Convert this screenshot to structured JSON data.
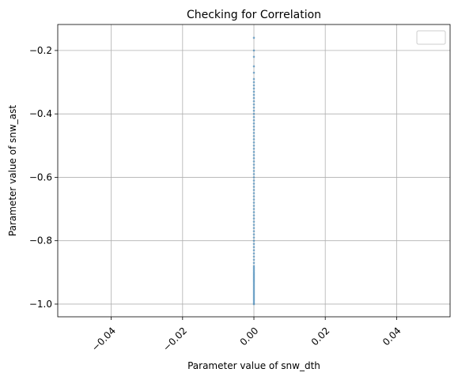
{
  "chart_data": {
    "type": "scatter",
    "title": "Checking for Correlation",
    "xlabel": "Parameter value of snw_dth",
    "ylabel": "Parameter value of snw_ast",
    "xlim": [
      -0.055,
      0.055
    ],
    "ylim": [
      -1.04,
      -0.118
    ],
    "xticks": [
      -0.04,
      -0.02,
      0.0,
      0.02,
      0.04
    ],
    "xtick_labels": [
      "−0.04",
      "−0.02",
      "0.00",
      "0.02",
      "0.04"
    ],
    "xtick_rotation": 45,
    "yticks": [
      -1.0,
      -0.8,
      -0.6,
      -0.4,
      -0.2
    ],
    "ytick_labels": [
      "−1.0",
      "−0.8",
      "−0.6",
      "−0.4",
      "−0.2"
    ],
    "grid": true,
    "legend": "empty box, top-right",
    "colors": {
      "point": "#1f77b4",
      "grid": "#b0b0b0"
    },
    "series": [
      {
        "x": [
          0,
          0,
          0,
          0,
          0,
          0,
          0,
          0,
          0,
          0,
          0,
          0,
          0,
          0,
          0,
          0,
          0,
          0,
          0,
          0,
          0,
          0,
          0,
          0,
          0,
          0,
          0,
          0,
          0,
          0,
          0,
          0,
          0,
          0,
          0,
          0,
          0,
          0,
          0,
          0,
          0,
          0,
          0,
          0,
          0,
          0,
          0,
          0,
          0,
          0,
          0,
          0,
          0,
          0,
          0,
          0,
          0,
          0,
          0,
          0,
          0,
          0,
          0,
          0,
          0,
          0,
          0,
          0,
          0,
          0,
          0,
          0,
          0,
          0,
          0,
          0,
          0,
          0,
          0,
          0,
          0,
          0,
          0,
          0,
          0,
          0,
          0,
          0,
          0
        ],
        "y": [
          -0.16,
          -0.2,
          -0.22,
          -0.25,
          -0.27,
          -0.29,
          -0.3,
          -0.31,
          -0.32,
          -0.33,
          -0.34,
          -0.35,
          -0.36,
          -0.37,
          -0.38,
          -0.39,
          -0.4,
          -0.41,
          -0.42,
          -0.43,
          -0.44,
          -0.45,
          -0.46,
          -0.47,
          -0.48,
          -0.49,
          -0.5,
          -0.51,
          -0.52,
          -0.53,
          -0.54,
          -0.55,
          -0.56,
          -0.57,
          -0.58,
          -0.59,
          -0.6,
          -0.61,
          -0.62,
          -0.63,
          -0.64,
          -0.65,
          -0.66,
          -0.67,
          -0.68,
          -0.69,
          -0.7,
          -0.71,
          -0.72,
          -0.73,
          -0.74,
          -0.75,
          -0.76,
          -0.77,
          -0.78,
          -0.79,
          -0.8,
          -0.81,
          -0.82,
          -0.83,
          -0.84,
          -0.85,
          -0.86,
          -0.87,
          -0.88,
          -0.89,
          -0.9,
          -0.91,
          -0.92,
          -0.93,
          -0.94,
          -0.95,
          -0.96,
          -0.965,
          -0.97,
          -0.975,
          -0.98,
          -0.985,
          -0.99,
          -0.995,
          -1.0,
          -0.945,
          -0.955,
          -0.935,
          -0.925,
          -0.915,
          -0.905,
          -0.895,
          -0.885
        ]
      }
    ]
  }
}
